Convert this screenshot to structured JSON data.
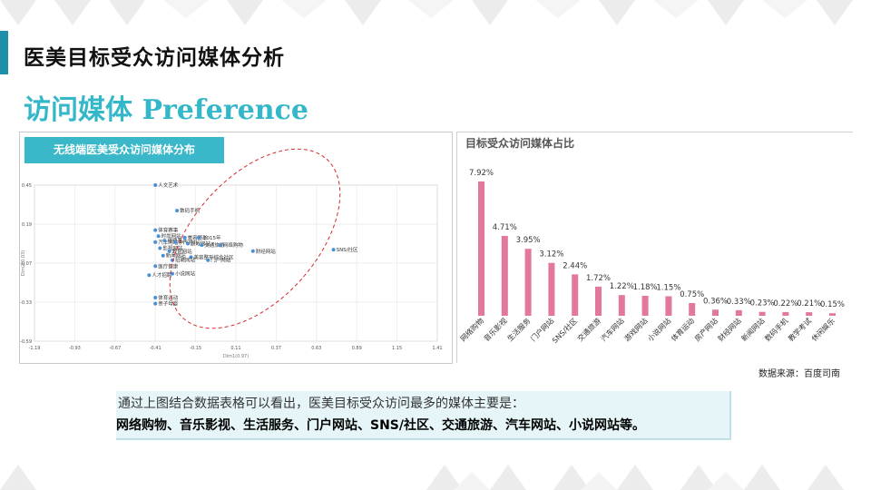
{
  "header": {
    "page_title": "医美目标受众访问媒体分析",
    "section_title": "访问媒体 Preference"
  },
  "colors": {
    "accent": "#34b8c9",
    "bar": "#e2789a",
    "point": "#4a90d9",
    "ellipse": "#d62d2d"
  },
  "chart_data": [
    {
      "type": "scatter",
      "title": "无线端医美受众访问媒体分布",
      "xlabel": "Dim1(0.97)",
      "ylabel": "Dim2(0.03)",
      "xlim": [
        -1.19,
        1.41
      ],
      "ylim": [
        -0.59,
        0.45
      ],
      "xticks": [
        "-1.19",
        "-0.93",
        "-0.67",
        "-0.41",
        "-0.15",
        "0.11",
        "0.37",
        "0.63",
        "0.89",
        "1.15",
        "1.41"
      ],
      "yticks": [
        "0.45",
        "0.19",
        "-0.07",
        "-0.33",
        "-0.59"
      ],
      "grid": true,
      "points": [
        {
          "label": "人文艺术",
          "x": -0.41,
          "y": 0.45
        },
        {
          "label": "数码手机",
          "x": -0.27,
          "y": 0.28
        },
        {
          "label": "体育赛事",
          "x": -0.41,
          "y": 0.15
        },
        {
          "label": "时尚网站",
          "x": -0.39,
          "y": 0.11
        },
        {
          "label": "汽车网站",
          "x": -0.41,
          "y": 0.07
        },
        {
          "label": "母婴育儿",
          "x": -0.35,
          "y": 0.08
        },
        {
          "label": "孕产育儿",
          "x": -0.28,
          "y": 0.07
        },
        {
          "label": "美容整形",
          "x": -0.22,
          "y": 0.1
        },
        {
          "label": "-2015年",
          "x": -0.13,
          "y": 0.1
        },
        {
          "label": "游戏网站",
          "x": -0.2,
          "y": 0.06
        },
        {
          "label": "交通旅游",
          "x": -0.11,
          "y": 0.05
        },
        {
          "label": "网络购物",
          "x": 0.01,
          "y": 0.05
        },
        {
          "label": "影视网站",
          "x": -0.38,
          "y": 0.03
        },
        {
          "label": "教育网站",
          "x": -0.32,
          "y": 0.01
        },
        {
          "label": "新闻网站",
          "x": -0.36,
          "y": -0.02
        },
        {
          "label": "财经网站",
          "x": 0.22,
          "y": 0.01
        },
        {
          "label": "美容整形综合社区",
          "x": -0.18,
          "y": -0.03
        },
        {
          "label": "门户网站",
          "x": -0.07,
          "y": -0.05
        },
        {
          "label": "招聘网站",
          "x": -0.3,
          "y": -0.05
        },
        {
          "label": "医疗健康",
          "x": -0.41,
          "y": -0.09
        },
        {
          "label": "人才招聘",
          "x": -0.45,
          "y": -0.15
        },
        {
          "label": "小说网站",
          "x": -0.3,
          "y": -0.14
        },
        {
          "label": "SNS/社区",
          "x": 0.74,
          "y": 0.02
        },
        {
          "label": "体育运动",
          "x": -0.41,
          "y": -0.3
        },
        {
          "label": "亲子母婴",
          "x": -0.41,
          "y": -0.34
        }
      ]
    },
    {
      "type": "bar",
      "title": "目标受众访问媒体占比",
      "categories": [
        "网络购物",
        "音乐影视",
        "生活服务",
        "门户网站",
        "SNS/社区",
        "交通旅游",
        "汽车网站",
        "游戏网站",
        "小说网站",
        "体育运动",
        "房产网站",
        "财经网站",
        "新闻网站",
        "数码手机",
        "教学考试",
        "休闲娱乐"
      ],
      "values": [
        7.92,
        4.71,
        3.95,
        3.12,
        2.44,
        1.72,
        1.22,
        1.18,
        1.15,
        0.75,
        0.36,
        0.33,
        0.23,
        0.22,
        0.21,
        0.15
      ],
      "value_labels": [
        "7.92%",
        "4.71%",
        "3.95%",
        "3.12%",
        "2.44%",
        "1.72%",
        "1.22%",
        "1.18%",
        "1.15%",
        "0.75%",
        "0.36%",
        "0.33%",
        "0.23%",
        "0.22%",
        "0.21%",
        "0.15%"
      ],
      "ylim": [
        0,
        8
      ]
    }
  ],
  "footer": {
    "source": "数据来源：百度司南",
    "note_line1": "通过上图结合数据表格可以看出，医美目标受众访问最多的媒体主要是：",
    "note_line2": "网络购物、音乐影视、生活服务、门户网站、SNS/社区、交通旅游、汽车网站、小说网站等。"
  }
}
